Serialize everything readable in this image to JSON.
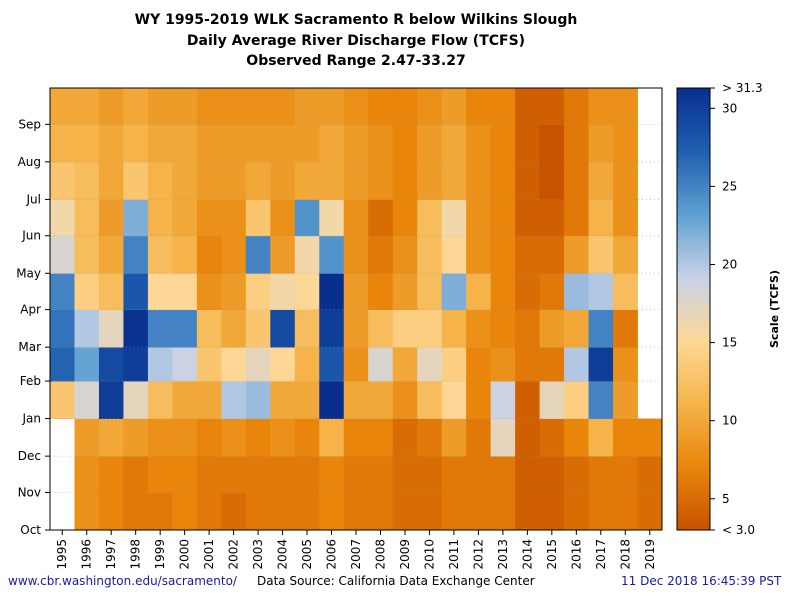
{
  "chart_data": {
    "type": "heatmap",
    "title": "WY 1995-2019 WLK Sacramento R below Wilkins Slough",
    "subtitle": "Daily Average River Discharge Flow (TCFS)",
    "subtitle2": "Observed Range 2.47-33.27",
    "x_categories": [
      "1995",
      "1996",
      "1997",
      "1998",
      "1999",
      "2000",
      "2001",
      "2002",
      "2003",
      "2004",
      "2005",
      "2006",
      "2007",
      "2008",
      "2009",
      "2010",
      "2011",
      "2012",
      "2013",
      "2014",
      "2015",
      "2016",
      "2017",
      "2018",
      "2019"
    ],
    "y_ticks": [
      "Oct",
      "Nov",
      "Dec",
      "Jan",
      "Feb",
      "Mar",
      "Apr",
      "May",
      "Jun",
      "Jul",
      "Aug",
      "Sep"
    ],
    "y_range_days": [
      0,
      365
    ],
    "colorbar": {
      "label": "Scale (TCFS)",
      "range": [
        3.0,
        31.3
      ],
      "ticks": [
        5,
        10,
        15,
        20,
        25,
        30
      ],
      "top_label": "> 31.3",
      "bottom_label": "< 3.0",
      "colors": [
        "#c85200",
        "#e8860a",
        "#f5b44a",
        "#fdd898",
        "#c8d2e6",
        "#5fa0d2",
        "#1f5fb0",
        "#082f8e"
      ]
    },
    "monthly_flow_tcfs": [
      [
        null,
        null,
        null,
        13,
        27,
        26,
        25,
        18,
        16,
        13,
        11,
        10
      ],
      [
        8,
        8,
        9,
        18,
        23,
        20,
        14,
        12,
        12,
        12,
        11,
        10
      ],
      [
        7,
        7,
        10,
        30,
        29,
        17,
        12,
        10,
        9,
        10,
        10,
        9
      ],
      [
        6,
        6,
        9,
        17,
        30,
        31,
        28,
        25,
        22,
        13,
        11,
        10
      ],
      [
        6,
        7,
        8,
        12,
        20,
        25,
        15,
        12,
        11,
        11,
        10,
        9
      ],
      [
        7,
        7,
        8,
        10,
        19,
        25,
        15,
        11,
        10,
        10,
        10,
        9
      ],
      [
        6,
        6,
        7,
        10,
        13,
        12,
        8,
        7,
        8,
        9,
        9,
        8
      ],
      [
        5,
        6,
        8,
        20,
        15,
        10,
        9,
        8,
        8,
        9,
        9,
        8
      ],
      [
        6,
        6,
        7,
        21,
        17,
        13,
        14,
        25,
        13,
        10,
        9,
        8
      ],
      [
        6,
        6,
        8,
        10,
        15,
        29,
        16,
        9,
        8,
        9,
        9,
        8
      ],
      [
        6,
        6,
        7,
        10,
        11,
        12,
        15,
        16,
        24,
        10,
        9,
        9
      ],
      [
        7,
        7,
        11,
        32,
        28,
        30,
        32,
        24,
        16,
        10,
        10,
        9
      ],
      [
        6,
        6,
        7,
        10,
        8,
        9,
        9,
        8,
        8,
        9,
        9,
        8
      ],
      [
        6,
        6,
        7,
        10,
        18,
        12,
        7,
        6,
        5,
        8,
        8,
        7
      ],
      [
        5,
        5,
        5,
        8,
        10,
        14,
        9,
        8,
        7,
        7,
        7,
        7
      ],
      [
        5,
        5,
        6,
        12,
        17,
        14,
        12,
        12,
        12,
        9,
        9,
        8
      ],
      [
        6,
        6,
        9,
        15,
        14,
        11,
        22,
        15,
        16,
        10,
        10,
        9
      ],
      [
        6,
        6,
        6,
        7,
        7,
        8,
        11,
        8,
        8,
        8,
        8,
        7
      ],
      [
        6,
        6,
        17,
        19,
        8,
        7,
        7,
        7,
        7,
        7,
        7,
        7
      ],
      [
        4,
        4,
        4,
        4,
        6,
        6,
        5,
        5,
        4,
        4,
        4,
        4
      ],
      [
        4,
        4,
        5,
        17,
        6,
        9,
        6,
        5,
        4,
        3,
        3,
        4
      ],
      [
        5,
        5,
        7,
        14,
        20,
        10,
        21,
        9,
        6,
        6,
        6,
        6
      ],
      [
        6,
        6,
        11,
        25,
        30,
        25,
        20,
        13,
        11,
        10,
        9,
        8
      ],
      [
        6,
        6,
        7,
        9,
        8,
        6,
        12,
        10,
        8,
        8,
        8,
        8
      ],
      [
        5,
        5,
        7,
        null,
        null,
        null,
        null,
        null,
        null,
        null,
        null,
        null
      ]
    ]
  },
  "footer": {
    "url": "www.cbr.washington.edu/sacramento/",
    "source": "Data Source: California Data Exchange Center",
    "timestamp": "11 Dec 2018 16:45:39 PST"
  }
}
